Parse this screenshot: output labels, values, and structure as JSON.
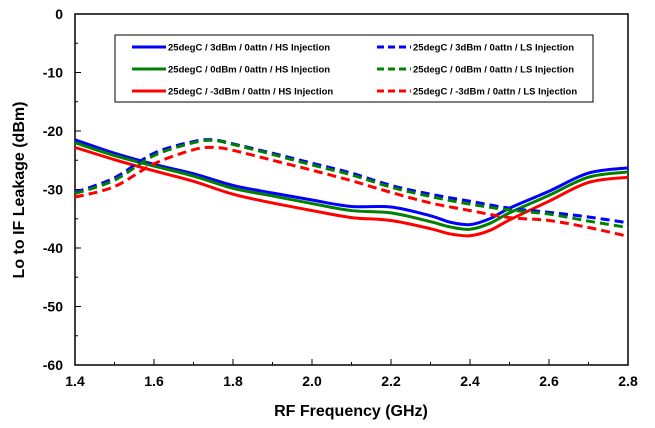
{
  "chart_data": {
    "type": "line",
    "title": "",
    "xlabel": "RF Frequency (GHz)",
    "ylabel": "Lo to IF Leakage (dBm)",
    "xlim": [
      1.4,
      2.8
    ],
    "ylim": [
      -60,
      0
    ],
    "x_ticks": [
      "1.4",
      "1.6",
      "1.8",
      "2.0",
      "2.2",
      "2.4",
      "2.6",
      "2.8"
    ],
    "y_ticks": [
      "0",
      "-10",
      "-20",
      "-30",
      "-40",
      "-50",
      "-60"
    ],
    "grid": false,
    "legend_position": "top",
    "series": [
      {
        "name": "25degC /  3dBm /  0attn /  HS Injection",
        "color": "#0000ff",
        "dash": "solid",
        "x": [
          1.4,
          1.5,
          1.6,
          1.7,
          1.8,
          1.9,
          2.0,
          2.1,
          2.2,
          2.3,
          2.35,
          2.4,
          2.45,
          2.5,
          2.6,
          2.7,
          2.8
        ],
        "y": [
          -21.5,
          -23.8,
          -25.7,
          -27.3,
          -29.3,
          -30.6,
          -31.8,
          -32.9,
          -33.0,
          -34.5,
          -35.6,
          -36.0,
          -35.0,
          -33.2,
          -30.3,
          -27.2,
          -26.3
        ]
      },
      {
        "name": "25degC /  0dBm /  0attn /  HS Injection",
        "color": "#008000",
        "dash": "solid",
        "x": [
          1.4,
          1.5,
          1.6,
          1.7,
          1.8,
          1.9,
          2.0,
          2.1,
          2.2,
          2.3,
          2.35,
          2.4,
          2.45,
          2.5,
          2.6,
          2.7,
          2.8
        ],
        "y": [
          -22.0,
          -24.2,
          -26.0,
          -27.7,
          -29.8,
          -31.1,
          -32.4,
          -33.6,
          -34.0,
          -35.5,
          -36.4,
          -36.8,
          -35.8,
          -34.0,
          -31.0,
          -27.9,
          -27.0
        ]
      },
      {
        "name": "25degC /  -3dBm /  0attn /  HS Injection",
        "color": "#ff0000",
        "dash": "solid",
        "x": [
          1.4,
          1.5,
          1.6,
          1.7,
          1.8,
          1.9,
          2.0,
          2.1,
          2.2,
          2.3,
          2.35,
          2.4,
          2.45,
          2.5,
          2.6,
          2.7,
          2.8
        ],
        "y": [
          -22.8,
          -24.9,
          -26.8,
          -28.6,
          -30.8,
          -32.3,
          -33.6,
          -34.8,
          -35.3,
          -36.7,
          -37.6,
          -37.9,
          -37.0,
          -35.2,
          -32.0,
          -28.8,
          -27.9
        ]
      },
      {
        "name": "25degC /  3dBm /  0attn /  LS Injection",
        "color": "#0000ff",
        "dash": "dashed",
        "x": [
          1.4,
          1.5,
          1.6,
          1.7,
          1.75,
          1.8,
          1.9,
          2.0,
          2.1,
          2.2,
          2.3,
          2.4,
          2.5,
          2.6,
          2.7,
          2.8
        ],
        "y": [
          -30.5,
          -28.0,
          -23.8,
          -21.8,
          -21.5,
          -22.2,
          -23.8,
          -25.5,
          -27.2,
          -29.3,
          -30.8,
          -32.0,
          -33.2,
          -33.9,
          -34.7,
          -35.7
        ]
      },
      {
        "name": "25degC /  0dBm /  0attn /  LS Injection",
        "color": "#008000",
        "dash": "dashed",
        "x": [
          1.4,
          1.5,
          1.6,
          1.7,
          1.75,
          1.8,
          1.9,
          2.0,
          2.1,
          2.2,
          2.3,
          2.4,
          2.5,
          2.6,
          2.7,
          2.8
        ],
        "y": [
          -30.7,
          -28.4,
          -24.2,
          -22.0,
          -21.6,
          -22.3,
          -24.0,
          -25.8,
          -27.5,
          -29.6,
          -31.2,
          -32.5,
          -33.5,
          -34.2,
          -35.4,
          -36.5
        ]
      },
      {
        "name": "25degC /  -3dBm /  0attn /  LS Injection",
        "color": "#ff0000",
        "dash": "dashed",
        "x": [
          1.4,
          1.5,
          1.6,
          1.7,
          1.75,
          1.8,
          1.9,
          2.0,
          2.1,
          2.2,
          2.3,
          2.4,
          2.5,
          2.6,
          2.7,
          2.8
        ],
        "y": [
          -31.3,
          -29.5,
          -25.6,
          -23.2,
          -22.8,
          -23.3,
          -25.0,
          -26.7,
          -28.5,
          -30.5,
          -32.3,
          -33.6,
          -34.8,
          -35.3,
          -36.5,
          -38.0
        ]
      }
    ]
  }
}
